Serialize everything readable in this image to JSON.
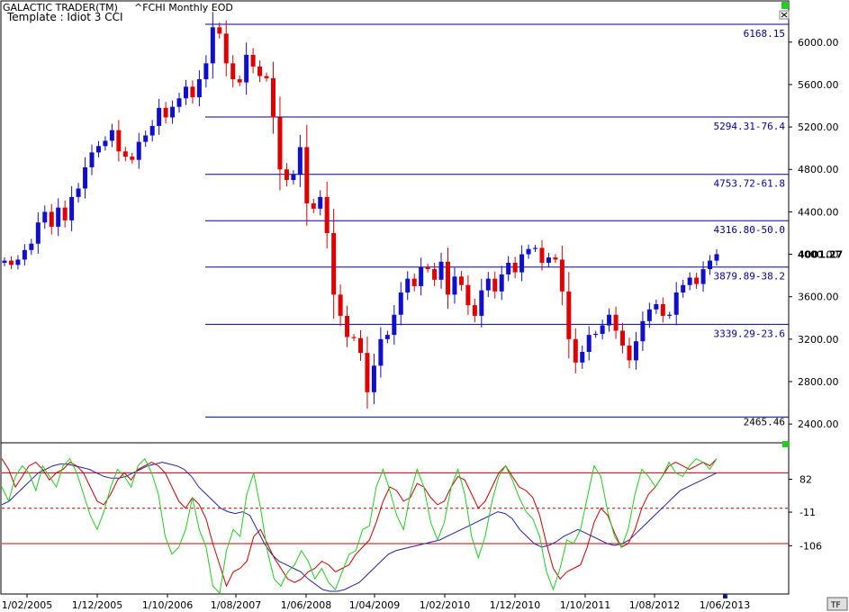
{
  "header": {
    "app_title": "GALACTIC TRADER(TM)",
    "chart_title": "^FCHI Monthly EOD",
    "template": "Template : Idiot 3 CCI",
    "tf_label": "TF"
  },
  "colors": {
    "up_candle": "#1010cc",
    "down_candle": "#e00000",
    "fib_line": "#0000a0",
    "fib_text": "#0000a0",
    "cci_green": "#22cc22",
    "cci_red": "#cc0000",
    "cci_blue": "#2222aa",
    "ref_line": "#cc0000",
    "corner_marker": "#22cc22"
  },
  "chart_data": [
    {
      "type": "candlestick",
      "title": "^FCHI Monthly EOD",
      "x_tick_labels": [
        "1/02/2005",
        "1/12/2005",
        "1/10/2006",
        "1/08/2007",
        "1/06/2008",
        "1/04/2009",
        "1/02/2010",
        "1/12/2010",
        "1/10/2011",
        "1/08/2012",
        "1/06/2013"
      ],
      "y_tick_labels": [
        "6000.00",
        "5600.00",
        "5200.00",
        "4800.00",
        "4400.00",
        "4000.00",
        "3600.00",
        "3200.00",
        "2800.00",
        "2400.00"
      ],
      "ylim": [
        2240,
        6380
      ],
      "last_price": "4001.27",
      "fib_levels": [
        {
          "label": "6168.15",
          "value": 6168.15
        },
        {
          "label": "5294.31-76.4",
          "value": 5294.31
        },
        {
          "label": "4753.72-61.8",
          "value": 4753.72
        },
        {
          "label": "4316.80-50.0",
          "value": 4316.8
        },
        {
          "label": "3879.89-38.2",
          "value": 3879.89
        },
        {
          "label": "3339.29-23.6",
          "value": 3339.29
        },
        {
          "label": "2465.46",
          "value": 2465.46
        }
      ],
      "closes": [
        3940,
        3900,
        3950,
        4040,
        4100,
        4300,
        4400,
        4260,
        4440,
        4320,
        4540,
        4620,
        4820,
        4960,
        5020,
        5070,
        5170,
        4970,
        4920,
        4890,
        5060,
        5120,
        5210,
        5380,
        5290,
        5390,
        5470,
        5580,
        5480,
        5650,
        5800,
        6140,
        6080,
        5800,
        5650,
        5620,
        5880,
        5770,
        5680,
        5660,
        5290,
        4800,
        4700,
        4750,
        5010,
        4480,
        4430,
        4540,
        4200,
        3620,
        3420,
        3220,
        3210,
        3070,
        2700,
        2950,
        3200,
        3240,
        3430,
        3640,
        3770,
        3700,
        3880,
        3860,
        3760,
        3930,
        3620,
        3790,
        3710,
        3520,
        3420,
        3660,
        3770,
        3650,
        3810,
        3920,
        3830,
        4000,
        4050,
        4060,
        3920,
        3970,
        3950,
        3650,
        3200,
        2980,
        3080,
        3240,
        3250,
        3330,
        3430,
        3280,
        3140,
        3000,
        3180,
        3370,
        3480,
        3530,
        3420,
        3430,
        3640,
        3710,
        3780,
        3720,
        3860,
        3940,
        4001.27
      ],
      "cci_lines": {
        "ref_levels": [
          {
            "label": "82",
            "value": 82
          },
          {
            "label": "-11",
            "value": -11
          },
          {
            "label": "-106",
            "value": -106
          }
        ],
        "ref_lines_solid": [
          100,
          -100
        ],
        "ref_line_dashed": 0,
        "ylim": [
          -240,
          180
        ],
        "green": [
          60,
          20,
          90,
          120,
          100,
          50,
          120,
          90,
          60,
          120,
          140,
          100,
          40,
          -20,
          -60,
          -10,
          60,
          110,
          90,
          60,
          120,
          140,
          100,
          40,
          -80,
          -130,
          -110,
          -60,
          30,
          -60,
          -110,
          -220,
          -240,
          -120,
          -60,
          -80,
          40,
          100,
          0,
          -120,
          -200,
          -220,
          -180,
          -160,
          -120,
          -150,
          -200,
          -170,
          -210,
          -230,
          -180,
          -130,
          -120,
          -60,
          -50,
          60,
          110,
          50,
          -20,
          -60,
          40,
          110,
          60,
          -40,
          -90,
          -40,
          60,
          110,
          40,
          -80,
          -140,
          -80,
          20,
          90,
          120,
          80,
          30,
          -10,
          -30,
          -80,
          -180,
          -230,
          -170,
          -90,
          -100,
          -60,
          30,
          120,
          90,
          -10,
          -80,
          -110,
          -60,
          40,
          110,
          90,
          60,
          90,
          130,
          100,
          90,
          120,
          140,
          130,
          110,
          140
        ],
        "red": [
          140,
          110,
          60,
          90,
          120,
          130,
          110,
          80,
          100,
          110,
          130,
          120,
          100,
          60,
          20,
          10,
          40,
          80,
          100,
          80,
          110,
          120,
          130,
          120,
          100,
          60,
          20,
          0,
          30,
          10,
          -30,
          -100,
          -160,
          -220,
          -180,
          -170,
          -150,
          -80,
          -60,
          -100,
          -140,
          -170,
          -200,
          -210,
          -200,
          -180,
          -170,
          -150,
          -160,
          -180,
          -170,
          -160,
          -130,
          -110,
          -90,
          -40,
          20,
          60,
          50,
          20,
          30,
          70,
          60,
          30,
          10,
          20,
          60,
          90,
          80,
          40,
          0,
          20,
          60,
          100,
          120,
          90,
          60,
          50,
          30,
          -20,
          -100,
          -170,
          -200,
          -180,
          -170,
          -160,
          -110,
          -40,
          0,
          -20,
          -70,
          -110,
          -100,
          -60,
          0,
          40,
          60,
          90,
          120,
          130,
          120,
          110,
          120,
          130,
          120,
          140
        ],
        "blue": [
          10,
          20,
          40,
          60,
          80,
          100,
          110,
          120,
          125,
          125,
          120,
          115,
          110,
          100,
          90,
          85,
          85,
          90,
          100,
          110,
          120,
          125,
          130,
          125,
          120,
          110,
          90,
          60,
          40,
          20,
          0,
          -10,
          -15,
          -10,
          -20,
          -60,
          -100,
          -130,
          -150,
          -160,
          -170,
          -180,
          -200,
          -215,
          -230,
          -235,
          -235,
          -230,
          -220,
          -210,
          -190,
          -170,
          -150,
          -130,
          -120,
          -115,
          -110,
          -105,
          -100,
          -95,
          -90,
          -80,
          -70,
          -60,
          -50,
          -40,
          -30,
          -20,
          -10,
          -15,
          -30,
          -60,
          -80,
          -100,
          -110,
          -105,
          -95,
          -80,
          -70,
          -60,
          -70,
          -80,
          -90,
          -100,
          -105,
          -100,
          -90,
          -70,
          -50,
          -30,
          -10,
          10,
          30,
          50,
          60,
          70,
          80,
          90,
          100
        ]
      }
    }
  ]
}
